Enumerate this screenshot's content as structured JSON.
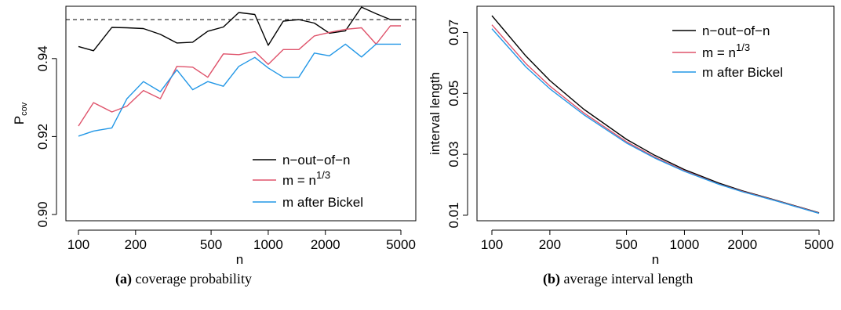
{
  "chart_data": [
    {
      "type": "line",
      "panel": "a",
      "xscale": "log",
      "xlabel": "n",
      "ylabel_main": "P",
      "ylabel_sub": "cov",
      "xticks": [
        100,
        200,
        500,
        1000,
        2000,
        5000
      ],
      "xtick_labels": [
        "100",
        "200",
        "500",
        "1000",
        "2000",
        "5000"
      ],
      "yticks": [
        0.9,
        0.92,
        0.94
      ],
      "ytick_labels": [
        "0.90",
        "0.92",
        "0.94"
      ],
      "xlim": [
        100,
        5000
      ],
      "ylim": [
        0.9,
        0.95
      ],
      "reference_line": 0.95,
      "x": [
        100,
        120,
        150,
        180,
        220,
        270,
        330,
        400,
        480,
        580,
        700,
        850,
        1000,
        1200,
        1450,
        1750,
        2100,
        2550,
        3100,
        3700,
        4400,
        5000
      ],
      "series": [
        {
          "name_prefix": "n−out−of−n",
          "name_base": "",
          "name_sup": "",
          "color": "#000000",
          "values": [
            0.9431,
            0.942,
            0.948,
            0.9479,
            0.9477,
            0.9462,
            0.944,
            0.9442,
            0.947,
            0.9481,
            0.9518,
            0.9513,
            0.9434,
            0.9496,
            0.95,
            0.9491,
            0.9465,
            0.9471,
            0.9532,
            0.9515,
            0.95,
            0.95
          ]
        },
        {
          "name_prefix": "m",
          "name_base": " = n",
          "name_sup": "1/3",
          "color": "#DF536B",
          "values": [
            0.9227,
            0.9287,
            0.9263,
            0.9278,
            0.9318,
            0.9297,
            0.938,
            0.9378,
            0.9352,
            0.9412,
            0.941,
            0.9418,
            0.9385,
            0.9423,
            0.9423,
            0.9458,
            0.9467,
            0.9475,
            0.9479,
            0.9437,
            0.9484,
            0.9484
          ]
        },
        {
          "name_prefix": "m after Bickel",
          "name_base": "",
          "name_sup": "",
          "color": "#2297E6",
          "values": [
            0.9201,
            0.9214,
            0.9222,
            0.9297,
            0.9341,
            0.9315,
            0.9371,
            0.932,
            0.9341,
            0.9329,
            0.938,
            0.9403,
            0.9376,
            0.9352,
            0.9352,
            0.9414,
            0.9407,
            0.9437,
            0.9404,
            0.9437,
            0.9437,
            0.9437
          ]
        }
      ],
      "legend_position": "bottom-right",
      "caption_tag": "(a)",
      "caption_text": "coverage probability"
    },
    {
      "type": "line",
      "panel": "b",
      "xscale": "log",
      "xlabel": "n",
      "ylabel": "interval length",
      "xticks": [
        100,
        200,
        500,
        1000,
        2000,
        5000
      ],
      "xtick_labels": [
        "100",
        "200",
        "500",
        "1000",
        "2000",
        "5000"
      ],
      "yticks": [
        0.01,
        0.03,
        0.05,
        0.07
      ],
      "ytick_labels": [
        "0.01",
        "0.03",
        "0.05",
        "0.07"
      ],
      "xlim": [
        100,
        5000
      ],
      "ylim": [
        0.0105,
        0.0755
      ],
      "x": [
        100,
        150,
        200,
        300,
        500,
        700,
        1000,
        1500,
        2000,
        3000,
        5000
      ],
      "series": [
        {
          "name_prefix": "n−out−of−n",
          "name_base": "",
          "name_sup": "",
          "color": "#000000",
          "values": [
            0.0755,
            0.0623,
            0.0542,
            0.0448,
            0.0349,
            0.0297,
            0.025,
            0.0206,
            0.018,
            0.0149,
            0.0108
          ]
        },
        {
          "name_prefix": "m",
          "name_base": " = n",
          "name_sup": "1/3",
          "color": "#DF536B",
          "values": [
            0.0725,
            0.0598,
            0.0524,
            0.0436,
            0.0341,
            0.0291,
            0.0246,
            0.0203,
            0.0178,
            0.0148,
            0.0107
          ]
        },
        {
          "name_prefix": "m after Bickel",
          "name_base": "",
          "name_sup": "",
          "color": "#2297E6",
          "values": [
            0.0712,
            0.0587,
            0.0515,
            0.043,
            0.0337,
            0.0288,
            0.0244,
            0.0202,
            0.0177,
            0.0147,
            0.0106
          ]
        }
      ],
      "legend_position": "top-right",
      "caption_tag": "(b)",
      "caption_text": "average interval length"
    }
  ]
}
